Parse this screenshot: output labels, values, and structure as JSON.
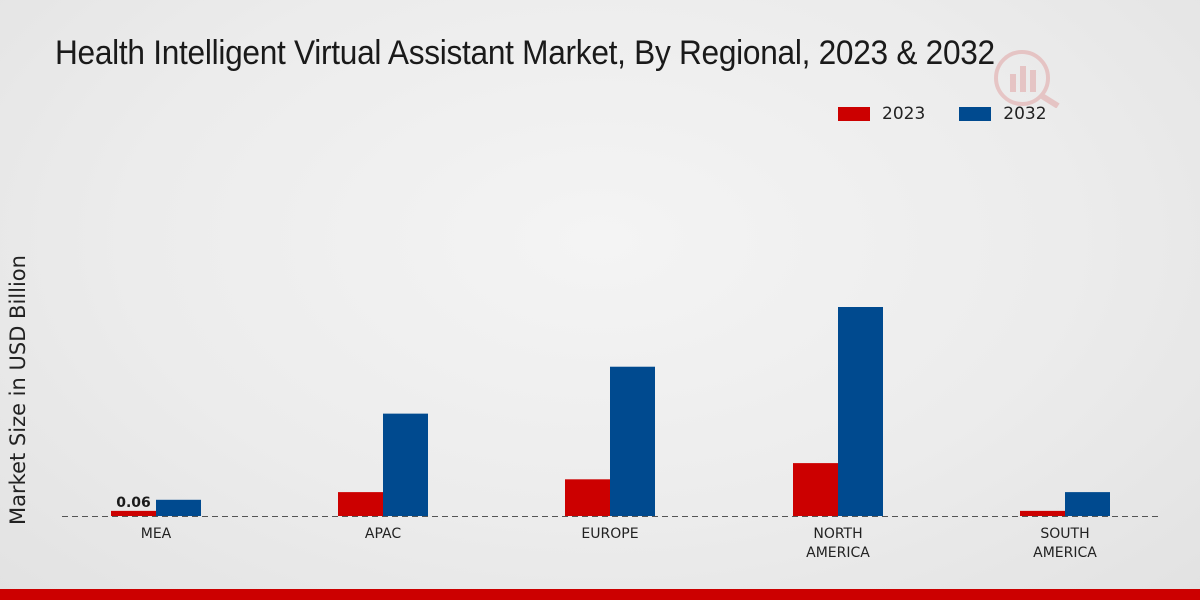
{
  "chart_data": {
    "type": "bar",
    "title": "Health Intelligent Virtual Assistant Market, By Regional, 2023 & 2032",
    "xlabel": "",
    "ylabel": "Market Size in USD Billion",
    "categories": [
      "MEA",
      "APAC",
      "EUROPE",
      "NORTH AMERICA",
      "SOUTH AMERICA"
    ],
    "category_lines": [
      [
        "MEA"
      ],
      [
        "APAC"
      ],
      [
        "EUROPE"
      ],
      [
        "NORTH",
        "AMERICA"
      ],
      [
        "SOUTH",
        "AMERICA"
      ]
    ],
    "series": [
      {
        "name": "2023",
        "color": "#cc0000",
        "values": [
          0.06,
          0.28,
          0.43,
          0.62,
          0.06
        ]
      },
      {
        "name": "2032",
        "color": "#004a8f",
        "values": [
          0.19,
          1.2,
          1.75,
          2.45,
          0.28
        ]
      }
    ],
    "ylim": [
      0,
      2.45
    ],
    "annotations": [
      {
        "series": "2023",
        "category": "MEA",
        "label": "0.06"
      }
    ],
    "legend_position": "top-right",
    "grid": false
  }
}
